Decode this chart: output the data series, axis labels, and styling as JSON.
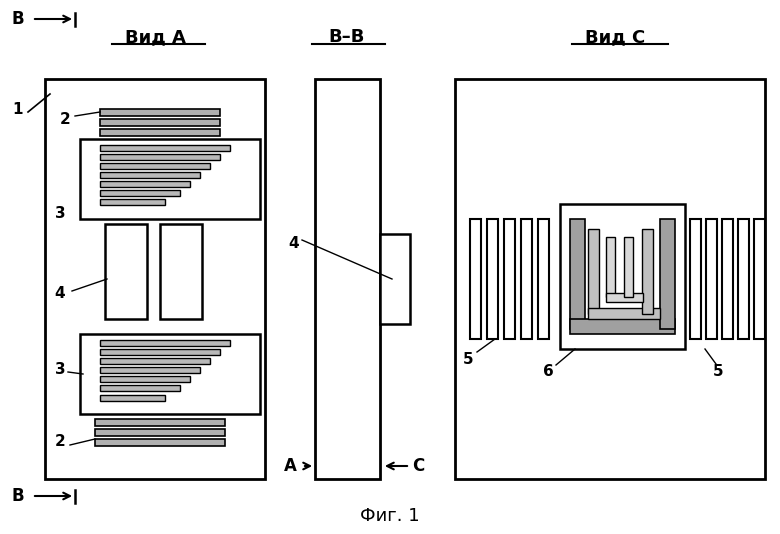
{
  "bg_color": "#ffffff",
  "line_color": "#000000",
  "fig_caption": "Фиг. 1",
  "title_vid_a": "Вид A",
  "title_bb": "B–B",
  "title_vid_c": "Вид C"
}
